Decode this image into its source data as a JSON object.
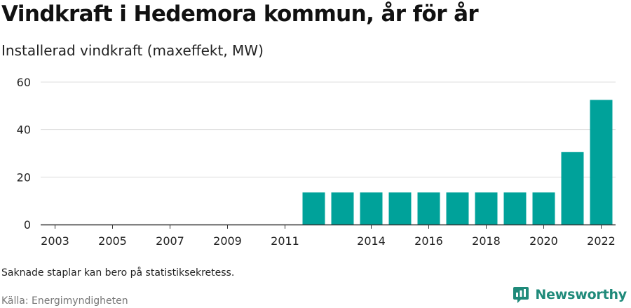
{
  "header": {
    "title": "Vindkraft i Hedemora kommun, år för år",
    "subtitle": "Installerad vindkraft (maxeffekt, MW)"
  },
  "footer": {
    "note": "Saknade staplar kan bero på statistiksekretess.",
    "source": "Källa: Energimyndigheten",
    "brand": "Newsworthy"
  },
  "colors": {
    "bar": "#00a29a",
    "grid": "#dddddd",
    "axis": "#333333",
    "brand": "#1f8a7a"
  },
  "icons": {
    "brand": "newsworthy-logo-icon"
  },
  "chart_data": {
    "type": "bar",
    "title": "Installerad vindkraft (maxeffekt, MW)",
    "xlabel": "",
    "ylabel": "",
    "categories": [
      "2003",
      "2004",
      "2005",
      "2006",
      "2007",
      "2008",
      "2009",
      "2010",
      "2011",
      "2012",
      "2013",
      "2014",
      "2015",
      "2016",
      "2017",
      "2018",
      "2019",
      "2020",
      "2021",
      "2022"
    ],
    "x_tick_labels": [
      "2003",
      "2005",
      "2007",
      "2009",
      "2011",
      "2014",
      "2016",
      "2018",
      "2020",
      "2022"
    ],
    "values": [
      null,
      null,
      null,
      null,
      null,
      null,
      null,
      null,
      null,
      13.5,
      13.5,
      13.5,
      13.5,
      13.5,
      13.5,
      13.5,
      13.5,
      13.5,
      30.5,
      52.5
    ],
    "ylim": [
      0,
      60
    ],
    "yticks": [
      0,
      20,
      40,
      60
    ],
    "grid": true,
    "legend": "none"
  }
}
